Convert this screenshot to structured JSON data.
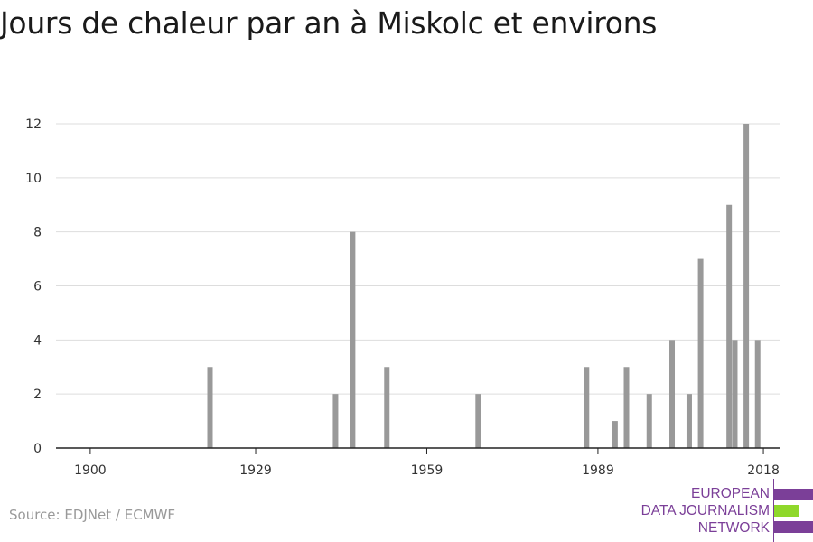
{
  "title": "Jours de chaleur par an à Miskolc et environs",
  "source": "Source: EDJNet / ECMWF",
  "logo": {
    "lines": [
      "EUROPEAN",
      "DATA JOURNALISM",
      "NETWORK"
    ],
    "colors": {
      "purple": "#7b3f98",
      "green": "#8fd82b"
    }
  },
  "colors": {
    "bar": "#999999",
    "grid": "#dddddd",
    "axis": "#222222"
  },
  "chart_data": {
    "type": "bar",
    "title": "Jours de chaleur par an à Miskolc et environs",
    "xlabel": "",
    "ylabel": "",
    "x_ticks": [
      1900,
      1929,
      1959,
      1989,
      2018
    ],
    "y_ticks": [
      0,
      2,
      4,
      6,
      8,
      10,
      12
    ],
    "xlim": [
      1894,
      2021
    ],
    "ylim": [
      0,
      12
    ],
    "grid": true,
    "x": [
      1921,
      1943,
      1946,
      1952,
      1968,
      1987,
      1992,
      1994,
      1998,
      2002,
      2005,
      2007,
      2012,
      2013,
      2015,
      2017
    ],
    "values": [
      3,
      2,
      8,
      3,
      2,
      3,
      1,
      3,
      2,
      4,
      2,
      7,
      9,
      4,
      12,
      4
    ]
  }
}
